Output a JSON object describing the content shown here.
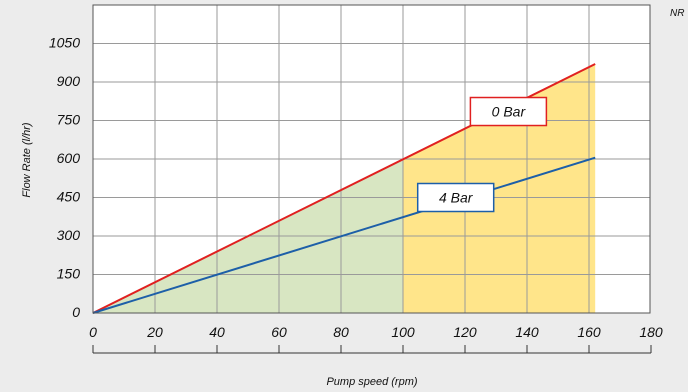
{
  "corner_label": "NR",
  "chart_data": {
    "type": "line",
    "title": "",
    "xlabel": "Pump speed (rpm)",
    "ylabel": "Flow Rate (l/hr)",
    "xlim": [
      0,
      180
    ],
    "ylim": [
      0,
      1200
    ],
    "xticks": [
      "0",
      "20",
      "40",
      "60",
      "80",
      "100",
      "120",
      "140",
      "160",
      "180"
    ],
    "yticks": [
      "0",
      "150",
      "300",
      "450",
      "600",
      "750",
      "900",
      "1050"
    ],
    "grid": true,
    "regions": [
      {
        "x_from": 0,
        "x_to": 100,
        "color": "#d8e6c2"
      },
      {
        "x_from": 100,
        "x_to": 162,
        "color": "#ffe58a"
      }
    ],
    "series": [
      {
        "name": "0 Bar",
        "color": "#e02020",
        "x": [
          0,
          162
        ],
        "y": [
          0,
          970
        ]
      },
      {
        "name": "4 Bar",
        "color": "#1d5fa8",
        "x": [
          0,
          162
        ],
        "y": [
          0,
          605
        ]
      }
    ],
    "callouts": [
      {
        "series": "0 Bar",
        "text": "0 Bar",
        "x": 134,
        "y": 785,
        "border": "#e02020"
      },
      {
        "series": "4 Bar",
        "text": "4 Bar",
        "x": 117,
        "y": 450,
        "border": "#1d5fa8"
      }
    ]
  }
}
